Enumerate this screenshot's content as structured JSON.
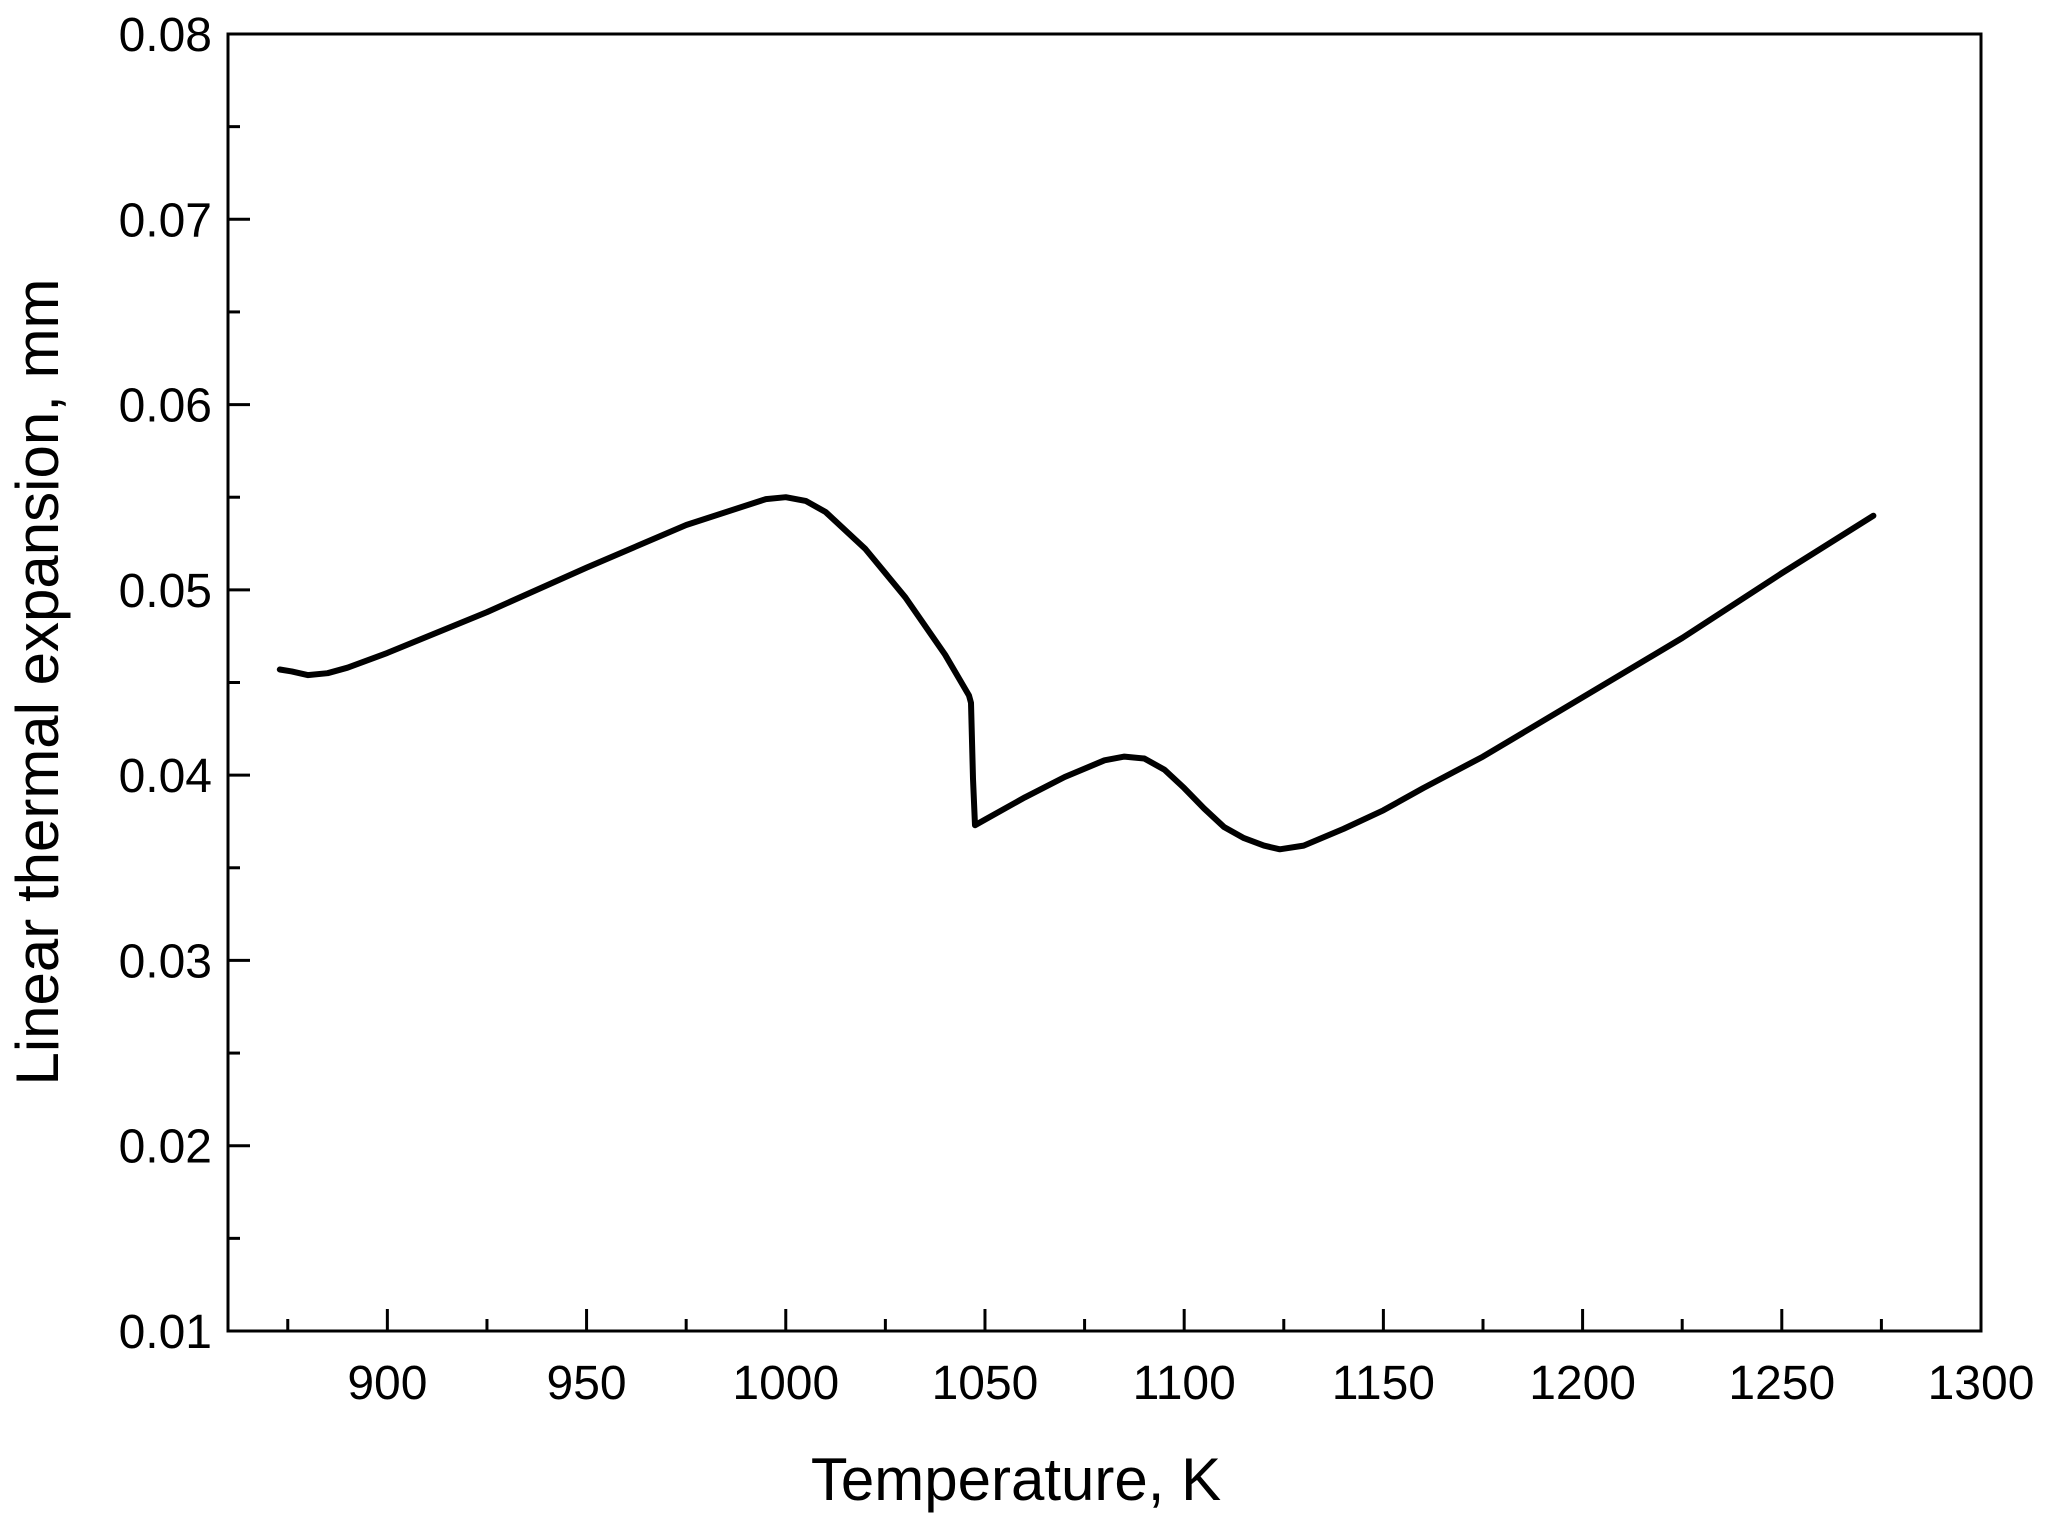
{
  "chart_data": {
    "type": "line",
    "title": "",
    "xlabel": "Temperature, K",
    "ylabel": "Linear thermal expansion, mm",
    "xlim": [
      860,
      1300
    ],
    "ylim": [
      0.01,
      0.08
    ],
    "x_ticks": [
      900,
      950,
      1000,
      1050,
      1100,
      1150,
      1200,
      1250,
      1300
    ],
    "x_tick_labels": [
      "900",
      "950",
      "1000",
      "1050",
      "1100",
      "1150",
      "1200",
      "1250",
      "1300"
    ],
    "y_ticks": [
      0.01,
      0.02,
      0.03,
      0.04,
      0.05,
      0.06,
      0.07,
      0.08
    ],
    "y_tick_labels": [
      "0.01",
      "0.02",
      "0.03",
      "0.04",
      "0.05",
      "0.06",
      "0.07",
      "0.08"
    ],
    "grid": false,
    "legend": "none",
    "line_color": "#000000",
    "series": [
      {
        "x": [
          873,
          876,
          880,
          885,
          890,
          900,
          925,
          950,
          975,
          995,
          1000,
          1005,
          1010,
          1020,
          1030,
          1040,
          1046,
          1046.5,
          1047,
          1047.5,
          1050,
          1060,
          1070,
          1080,
          1085,
          1090,
          1095,
          1100,
          1105,
          1110,
          1115,
          1120,
          1124,
          1130,
          1140,
          1150,
          1160,
          1175,
          1200,
          1225,
          1250,
          1273
        ],
        "y": [
          0.0457,
          0.0456,
          0.0454,
          0.0455,
          0.0458,
          0.0466,
          0.0488,
          0.0512,
          0.0535,
          0.0549,
          0.055,
          0.0548,
          0.0542,
          0.0522,
          0.0496,
          0.0465,
          0.0443,
          0.0439,
          0.0398,
          0.0373,
          0.0376,
          0.0388,
          0.0399,
          0.0408,
          0.041,
          0.0409,
          0.0403,
          0.0393,
          0.0382,
          0.0372,
          0.0366,
          0.0362,
          0.036,
          0.0362,
          0.0371,
          0.0381,
          0.0393,
          0.041,
          0.0442,
          0.0474,
          0.0509,
          0.054
        ]
      }
    ]
  }
}
